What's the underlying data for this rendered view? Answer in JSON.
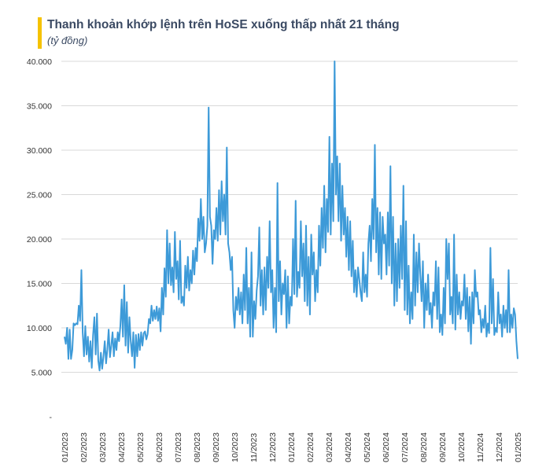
{
  "header": {
    "title": "Thanh khoản khớp lệnh trên HoSE xuống thấp nhất 21 tháng",
    "unit": "(tỷ đồng)",
    "accent_color": "#f5c200"
  },
  "chart_data": {
    "type": "line",
    "title": "Thanh khoản khớp lệnh trên HoSE xuống thấp nhất 21 tháng",
    "ylabel": "(tỷ đồng)",
    "xlabel": "",
    "ylim": [
      0,
      40000
    ],
    "yticks": [
      0,
      5000,
      10000,
      15000,
      20000,
      25000,
      30000,
      35000,
      40000
    ],
    "ytick_labels": [
      "-",
      "5.000",
      "10.000",
      "15.000",
      "20.000",
      "25.000",
      "30.000",
      "35.000",
      "40.000"
    ],
    "xtick_labels": [
      "01/2023",
      "02/2023",
      "03/2023",
      "04/2023",
      "05/2023",
      "06/2023",
      "07/2023",
      "08/2023",
      "09/2023",
      "10/2023",
      "11/2023",
      "12/2023",
      "01/2024",
      "02/2024",
      "03/2024",
      "04/2024",
      "05/2024",
      "06/2024",
      "07/2024",
      "08/2024",
      "09/2024",
      "10/2024",
      "11/2024",
      "12/2024",
      "01/2025"
    ],
    "grid": true,
    "legend": "none",
    "line_color": "#3d9ad8",
    "x_start": "2023-01",
    "x_end": "2025-01-31",
    "values": [
      9000,
      8200,
      10000,
      6500,
      9800,
      6500,
      7500,
      10500,
      10300,
      10500,
      10400,
      12500,
      10800,
      16500,
      9500,
      6800,
      10200,
      7000,
      9000,
      6200,
      8500,
      5500,
      9200,
      11200,
      7000,
      11600,
      6300,
      5200,
      7200,
      5400,
      6800,
      8500,
      6000,
      7600,
      9800,
      6700,
      8000,
      9500,
      6800,
      8800,
      7500,
      9500,
      8500,
      10200,
      13200,
      9000,
      14800,
      8000,
      12900,
      7200,
      11200,
      8500,
      6800,
      9500,
      5500,
      9200,
      6800,
      9300,
      7500,
      9500,
      8000,
      9400,
      9600,
      8700,
      9300,
      11000,
      10500,
      12500,
      10800,
      12000,
      11000,
      12400,
      10800,
      12200,
      9600,
      14500,
      11500,
      16700,
      13500,
      21000,
      15000,
      19500,
      14800,
      16800,
      14000,
      20800,
      15500,
      17500,
      13200,
      19800,
      12800,
      13500,
      12500,
      17000,
      14500,
      18000,
      14200,
      16500,
      15000,
      18700,
      16000,
      19000,
      17500,
      22300,
      19800,
      24500,
      20000,
      22500,
      18500,
      19500,
      21500,
      34800,
      22500,
      21500,
      17200,
      21000,
      20000,
      23500,
      19800,
      25500,
      20500,
      26500,
      22000,
      25000,
      20500,
      30300,
      19500,
      18500,
      16500,
      18000,
      12000,
      10000,
      13500,
      12000,
      14500,
      11500,
      14000,
      10500,
      16000,
      12000,
      19000,
      10500,
      14500,
      9000,
      18500,
      9000,
      13000,
      11000,
      14200,
      15800,
      21300,
      12500,
      16500,
      11500,
      16800,
      12000,
      18000,
      14500,
      22000,
      14000,
      16500,
      10000,
      14500,
      9500,
      26300,
      13000,
      17500,
      11500,
      15000,
      13800,
      16500,
      10000,
      15800,
      10500,
      13500,
      12500,
      20000,
      13800,
      24300,
      13500,
      16300,
      14500,
      22000,
      15800,
      19500,
      13000,
      21500,
      12500,
      18000,
      11500,
      20500,
      16000,
      18500,
      13000,
      16500,
      14000,
      21500,
      17000,
      23500,
      19000,
      26000,
      18500,
      24500,
      20800,
      31500,
      20500,
      28500,
      22000,
      40000,
      25000,
      29300,
      22000,
      28500,
      19800,
      26000,
      20500,
      23500,
      18000,
      22500,
      16500,
      22000,
      15800,
      19800,
      14000,
      16500,
      13500,
      16800,
      15500,
      14000,
      13000,
      18500,
      14000,
      16000,
      13500,
      19500,
      21500,
      17500,
      24500,
      20000,
      30600,
      18500,
      23500,
      16000,
      23000,
      15500,
      22500,
      19500,
      20500,
      16000,
      23000,
      17000,
      28200,
      15000,
      22500,
      12500,
      19500,
      13000,
      20000,
      14500,
      21500,
      15500,
      26000,
      12000,
      22000,
      11500,
      17000,
      10500,
      14000,
      11000,
      20500,
      12500,
      18500,
      14000,
      19500,
      16000,
      13000,
      17500,
      10000,
      15000,
      12000,
      16000,
      11500,
      12800,
      10000,
      14000,
      12500,
      17500,
      11000,
      16800,
      9500,
      11500,
      9200,
      14500,
      10500,
      20000,
      15500,
      19500,
      11500,
      13500,
      10500,
      20500,
      9800,
      16000,
      11500,
      14000,
      11000,
      13000,
      12500,
      16000,
      11000,
      14500,
      9600,
      13500,
      8200,
      14000,
      10500,
      16500,
      13500,
      14000,
      11500,
      12000,
      9500,
      11000,
      10000,
      12500,
      9000,
      10500,
      9400,
      19000,
      10500,
      15500,
      9200,
      10000,
      9500,
      14000,
      10500,
      11500,
      9000,
      12500,
      10000,
      12000,
      9500,
      16500,
      9500,
      11500,
      10000,
      12200,
      11500,
      8500,
      6500
    ]
  }
}
